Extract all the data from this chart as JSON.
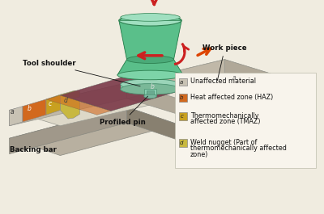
{
  "bg_color": "#f0ece0",
  "colors": {
    "tool_green_body": "#5abf8a",
    "tool_green_top": "#7dd4a8",
    "tool_green_dark": "#2d8050",
    "tool_green_mid": "#4aaa78",
    "tool_green_light": "#a0dfc0",
    "plate_top": "#ddd8c8",
    "plate_top2": "#e8e4d8",
    "plate_side_front": "#c0b8a8",
    "plate_side_right": "#b0a898",
    "weld_strip": "#7a3848",
    "weld_strip2": "#9a4858",
    "haz_color": "#d2691e",
    "tmaz_color": "#c8a020",
    "nugget_color": "#c8b840",
    "nugget_glow": "#d4cc70",
    "unaffected": "#c8c2b4",
    "backing_top": "#b8b0a0",
    "backing_front": "#a0988a",
    "backing_right": "#888070",
    "arrow_red": "#cc2020",
    "arrow_travel": "#dd4400"
  },
  "labels": {
    "tool_shoulder": "Tool shoulder",
    "work_piece": "Work piece",
    "backing_bar": "Backing bar",
    "profiled_pin": "Profiled pin"
  },
  "legend": {
    "items": [
      {
        "key": "a",
        "label": "Unaffected material",
        "color": "#c8c2b4"
      },
      {
        "key": "b",
        "label": "Heat affected zone (HAZ)",
        "color": "#d2691e"
      },
      {
        "key": "c",
        "label": "Thermomechanically\naffected zone (TMAZ)",
        "color": "#c8a020"
      },
      {
        "key": "d",
        "label": "Weld nugget (Part of\nthermomechanically affected\nzone)",
        "color": "#d4c840"
      }
    ]
  }
}
